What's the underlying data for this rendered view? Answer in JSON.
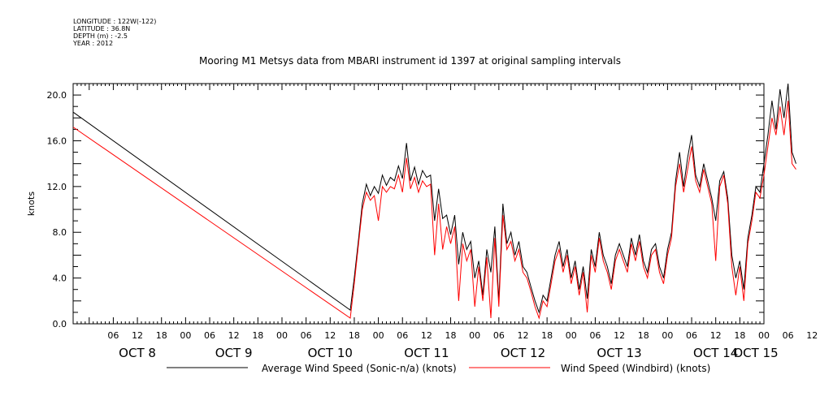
{
  "metadata": {
    "longitude": "LONGITUDE : 122W(-122)",
    "latitude": "LATITUDE : 36.8N",
    "depth": "DEPTH (m) : -2.5",
    "year": "YEAR : 2012"
  },
  "chart_data": {
    "type": "line",
    "title": "Mooring M1 Metsys data from MBARI instrument id 1397 at original sampling intervals",
    "ylabel": "knots",
    "xlabel": "",
    "ylim": [
      0,
      21.0
    ],
    "yticks": [
      "0.0",
      "4.0",
      "8.0",
      "12.0",
      "16.0",
      "20.0"
    ],
    "x_unit": "hours since OCT 8 00:00",
    "xlim": [
      -4,
      168
    ],
    "hour_ticks": [
      "06",
      "12",
      "18",
      "00",
      "06",
      "12",
      "18",
      "00",
      "06",
      "12",
      "18",
      "00",
      "06",
      "12",
      "18",
      "00",
      "06",
      "12",
      "18",
      "00",
      "06",
      "12",
      "18",
      "00",
      "06",
      "12",
      "18",
      "00",
      "06",
      "12",
      "18",
      "00"
    ],
    "day_labels": [
      "OCT  8",
      "OCT  9",
      "OCT 10",
      "OCT 11",
      "OCT 12",
      "OCT 13",
      "OCT 14",
      "OCT 15"
    ],
    "grid": false,
    "legend_position": "bottom",
    "series": [
      {
        "name": "Average Wind Speed (Sonic-n/a) (knots)",
        "color": "#000000",
        "points": [
          [
            -4,
            18.5
          ],
          [
            65,
            1.2
          ],
          [
            66,
            4
          ],
          [
            67,
            7.2
          ],
          [
            68,
            10.5
          ],
          [
            69,
            12.2
          ],
          [
            70,
            11.2
          ],
          [
            71,
            12.0
          ],
          [
            72,
            11.4
          ],
          [
            73,
            13.0
          ],
          [
            74,
            12.1
          ],
          [
            75,
            12.8
          ],
          [
            76,
            12.5
          ],
          [
            77,
            13.8
          ],
          [
            78,
            12.7
          ],
          [
            79,
            15.8
          ],
          [
            80,
            12.5
          ],
          [
            81,
            13.7
          ],
          [
            82,
            12.2
          ],
          [
            83,
            13.4
          ],
          [
            84,
            12.8
          ],
          [
            85,
            13.0
          ],
          [
            86,
            9.0
          ],
          [
            87,
            11.8
          ],
          [
            88,
            9.2
          ],
          [
            89,
            9.5
          ],
          [
            90,
            7.8
          ],
          [
            91,
            9.5
          ],
          [
            92,
            5.2
          ],
          [
            93,
            8.0
          ],
          [
            94,
            6.5
          ],
          [
            95,
            7.2
          ],
          [
            96,
            4.0
          ],
          [
            97,
            5.5
          ],
          [
            98,
            2.5
          ],
          [
            99,
            6.5
          ],
          [
            100,
            4.5
          ],
          [
            101,
            8.5
          ],
          [
            102,
            2.0
          ],
          [
            103,
            10.5
          ],
          [
            104,
            7.0
          ],
          [
            105,
            8.0
          ],
          [
            106,
            6.0
          ],
          [
            107,
            7.2
          ],
          [
            108,
            5.0
          ],
          [
            109,
            4.5
          ],
          [
            110,
            3.2
          ],
          [
            111,
            2.0
          ],
          [
            112,
            1.0
          ],
          [
            113,
            2.5
          ],
          [
            114,
            2.0
          ],
          [
            115,
            4.0
          ],
          [
            116,
            6.0
          ],
          [
            117,
            7.2
          ],
          [
            118,
            5.0
          ],
          [
            119,
            6.5
          ],
          [
            120,
            4.0
          ],
          [
            121,
            5.5
          ],
          [
            122,
            3.0
          ],
          [
            123,
            5.0
          ],
          [
            124,
            2.2
          ],
          [
            125,
            6.5
          ],
          [
            126,
            5.0
          ],
          [
            127,
            8.0
          ],
          [
            128,
            6.0
          ],
          [
            129,
            5.0
          ],
          [
            130,
            3.5
          ],
          [
            131,
            6.0
          ],
          [
            132,
            7.0
          ],
          [
            133,
            6.0
          ],
          [
            134,
            5.0
          ],
          [
            135,
            7.5
          ],
          [
            136,
            6.0
          ],
          [
            137,
            7.8
          ],
          [
            138,
            5.5
          ],
          [
            139,
            4.5
          ],
          [
            140,
            6.5
          ],
          [
            141,
            7.0
          ],
          [
            142,
            5.0
          ],
          [
            143,
            4.0
          ],
          [
            144,
            6.5
          ],
          [
            145,
            8.0
          ],
          [
            146,
            12.5
          ],
          [
            147,
            15.0
          ],
          [
            148,
            12.0
          ],
          [
            149,
            14.5
          ],
          [
            150,
            16.5
          ],
          [
            151,
            13.0
          ],
          [
            152,
            12.0
          ],
          [
            153,
            14.0
          ],
          [
            154,
            12.5
          ],
          [
            155,
            11.0
          ],
          [
            156,
            9.0
          ],
          [
            157,
            12.5
          ],
          [
            158,
            13.3
          ],
          [
            159,
            11.0
          ],
          [
            160,
            6.0
          ],
          [
            161,
            4.0
          ],
          [
            162,
            5.5
          ],
          [
            163,
            3.0
          ],
          [
            164,
            7.5
          ],
          [
            165,
            9.5
          ],
          [
            166,
            12.0
          ],
          [
            167,
            11.5
          ],
          [
            168,
            14.0
          ],
          [
            169,
            16.5
          ],
          [
            170,
            19.5
          ],
          [
            171,
            17.0
          ],
          [
            172,
            20.5
          ],
          [
            173,
            18.0
          ],
          [
            174,
            21.0
          ],
          [
            175,
            15.0
          ],
          [
            176,
            14.0
          ]
        ]
      },
      {
        "name": "Wind Speed (Windbird) (knots)",
        "color": "#ff0000",
        "points": [
          [
            -4,
            17.2
          ],
          [
            65,
            0.5
          ],
          [
            66,
            3.5
          ],
          [
            67,
            6.8
          ],
          [
            68,
            10.0
          ],
          [
            69,
            11.5
          ],
          [
            70,
            10.8
          ],
          [
            71,
            11.2
          ],
          [
            72,
            9.0
          ],
          [
            73,
            12.0
          ],
          [
            74,
            11.5
          ],
          [
            75,
            12.0
          ],
          [
            76,
            11.8
          ],
          [
            77,
            13.0
          ],
          [
            78,
            11.5
          ],
          [
            79,
            14.5
          ],
          [
            80,
            11.8
          ],
          [
            81,
            12.8
          ],
          [
            82,
            11.5
          ],
          [
            83,
            12.5
          ],
          [
            84,
            12.0
          ],
          [
            85,
            12.2
          ],
          [
            86,
            6.0
          ],
          [
            87,
            10.5
          ],
          [
            88,
            6.5
          ],
          [
            89,
            8.5
          ],
          [
            90,
            7.0
          ],
          [
            91,
            8.5
          ],
          [
            92,
            2.0
          ],
          [
            93,
            7.0
          ],
          [
            94,
            5.5
          ],
          [
            95,
            6.5
          ],
          [
            96,
            1.5
          ],
          [
            97,
            5.0
          ],
          [
            98,
            2.0
          ],
          [
            99,
            5.8
          ],
          [
            100,
            0.5
          ],
          [
            101,
            7.5
          ],
          [
            102,
            1.5
          ],
          [
            103,
            9.5
          ],
          [
            104,
            6.5
          ],
          [
            105,
            7.2
          ],
          [
            106,
            5.5
          ],
          [
            107,
            6.5
          ],
          [
            108,
            4.5
          ],
          [
            109,
            4.0
          ],
          [
            110,
            2.8
          ],
          [
            111,
            1.5
          ],
          [
            112,
            0.5
          ],
          [
            113,
            2.0
          ],
          [
            114,
            1.5
          ],
          [
            115,
            3.5
          ],
          [
            116,
            5.5
          ],
          [
            117,
            6.5
          ],
          [
            118,
            4.5
          ],
          [
            119,
            6.0
          ],
          [
            120,
            3.5
          ],
          [
            121,
            5.0
          ],
          [
            122,
            2.5
          ],
          [
            123,
            4.5
          ],
          [
            124,
            1.0
          ],
          [
            125,
            6.0
          ],
          [
            126,
            4.5
          ],
          [
            127,
            7.5
          ],
          [
            128,
            5.5
          ],
          [
            129,
            4.5
          ],
          [
            130,
            3.0
          ],
          [
            131,
            5.5
          ],
          [
            132,
            6.5
          ],
          [
            133,
            5.5
          ],
          [
            134,
            4.5
          ],
          [
            135,
            7.0
          ],
          [
            136,
            5.5
          ],
          [
            137,
            7.2
          ],
          [
            138,
            5.0
          ],
          [
            139,
            4.0
          ],
          [
            140,
            6.0
          ],
          [
            141,
            6.5
          ],
          [
            142,
            4.5
          ],
          [
            143,
            3.5
          ],
          [
            144,
            6.0
          ],
          [
            145,
            7.5
          ],
          [
            146,
            12.0
          ],
          [
            147,
            14.0
          ],
          [
            148,
            11.5
          ],
          [
            149,
            13.5
          ],
          [
            150,
            15.5
          ],
          [
            151,
            12.5
          ],
          [
            152,
            11.5
          ],
          [
            153,
            13.5
          ],
          [
            154,
            12.0
          ],
          [
            155,
            10.5
          ],
          [
            156,
            5.5
          ],
          [
            157,
            12.0
          ],
          [
            158,
            13.0
          ],
          [
            159,
            10.5
          ],
          [
            160,
            5.0
          ],
          [
            161,
            2.5
          ],
          [
            162,
            5.0
          ],
          [
            163,
            2.0
          ],
          [
            164,
            7.0
          ],
          [
            165,
            9.0
          ],
          [
            166,
            11.5
          ],
          [
            167,
            11.0
          ],
          [
            168,
            13.0
          ],
          [
            169,
            15.5
          ],
          [
            170,
            18.0
          ],
          [
            171,
            16.5
          ],
          [
            172,
            19.0
          ],
          [
            173,
            16.5
          ],
          [
            174,
            19.5
          ],
          [
            175,
            14.0
          ],
          [
            176,
            13.5
          ]
        ]
      }
    ]
  }
}
